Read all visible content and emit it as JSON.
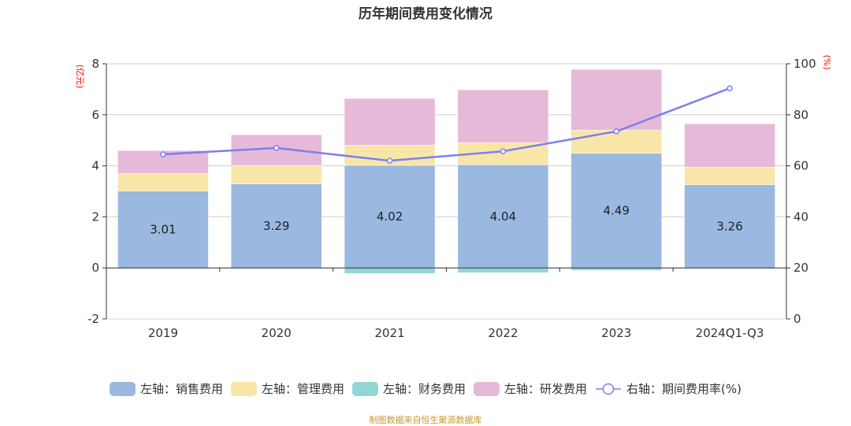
{
  "chart_data": {
    "type": "bar",
    "title": "历年期间费用变化情况",
    "categories": [
      "2019",
      "2020",
      "2021",
      "2022",
      "2023",
      "2024Q1-Q3"
    ],
    "stacked": true,
    "left_axis": {
      "unit_label": "(亿元)",
      "ylim": [
        -2,
        8
      ],
      "ticks": [
        -2,
        0,
        2,
        4,
        6,
        8
      ],
      "tick_labels": [
        "-2",
        "0",
        "2",
        "4",
        "6",
        "8"
      ]
    },
    "right_axis": {
      "unit_label": "(%)",
      "ylim": [
        0,
        100
      ],
      "ticks": [
        0,
        20,
        40,
        60,
        80,
        100
      ],
      "tick_labels": [
        "0",
        "20",
        "40",
        "60",
        "80",
        "100"
      ]
    },
    "grid": true,
    "series": [
      {
        "name": "左轴：销售费用",
        "axis": "left",
        "type": "bar",
        "color": "#9bb8e1",
        "values": [
          3.01,
          3.29,
          4.02,
          4.04,
          4.49,
          3.26
        ],
        "labels": [
          "3.01",
          "3.29",
          "4.02",
          "4.04",
          "4.49",
          "3.26"
        ]
      },
      {
        "name": "左轴：管理费用",
        "axis": "left",
        "type": "bar",
        "color": "#f8e6a9",
        "values": [
          0.69,
          0.72,
          0.79,
          0.87,
          0.91,
          0.69
        ]
      },
      {
        "name": "左轴：财务费用",
        "axis": "left",
        "type": "bar",
        "color": "#94d5d6",
        "values": [
          -0.03,
          -0.03,
          -0.22,
          -0.19,
          -0.1,
          -0.03
        ]
      },
      {
        "name": "左轴：研发费用",
        "axis": "left",
        "type": "bar",
        "color": "#e7b9d8",
        "values": [
          0.9,
          1.21,
          1.83,
          2.07,
          2.38,
          1.7
        ]
      },
      {
        "name": "右轴：期间费用率(%)",
        "axis": "right",
        "type": "line",
        "color": "#7b7ff0",
        "values": [
          64.5,
          67.0,
          62.0,
          65.7,
          73.5,
          90.4
        ]
      }
    ],
    "legend_position": "bottom",
    "source_note": "制图数据来自恒生聚源数据库"
  }
}
